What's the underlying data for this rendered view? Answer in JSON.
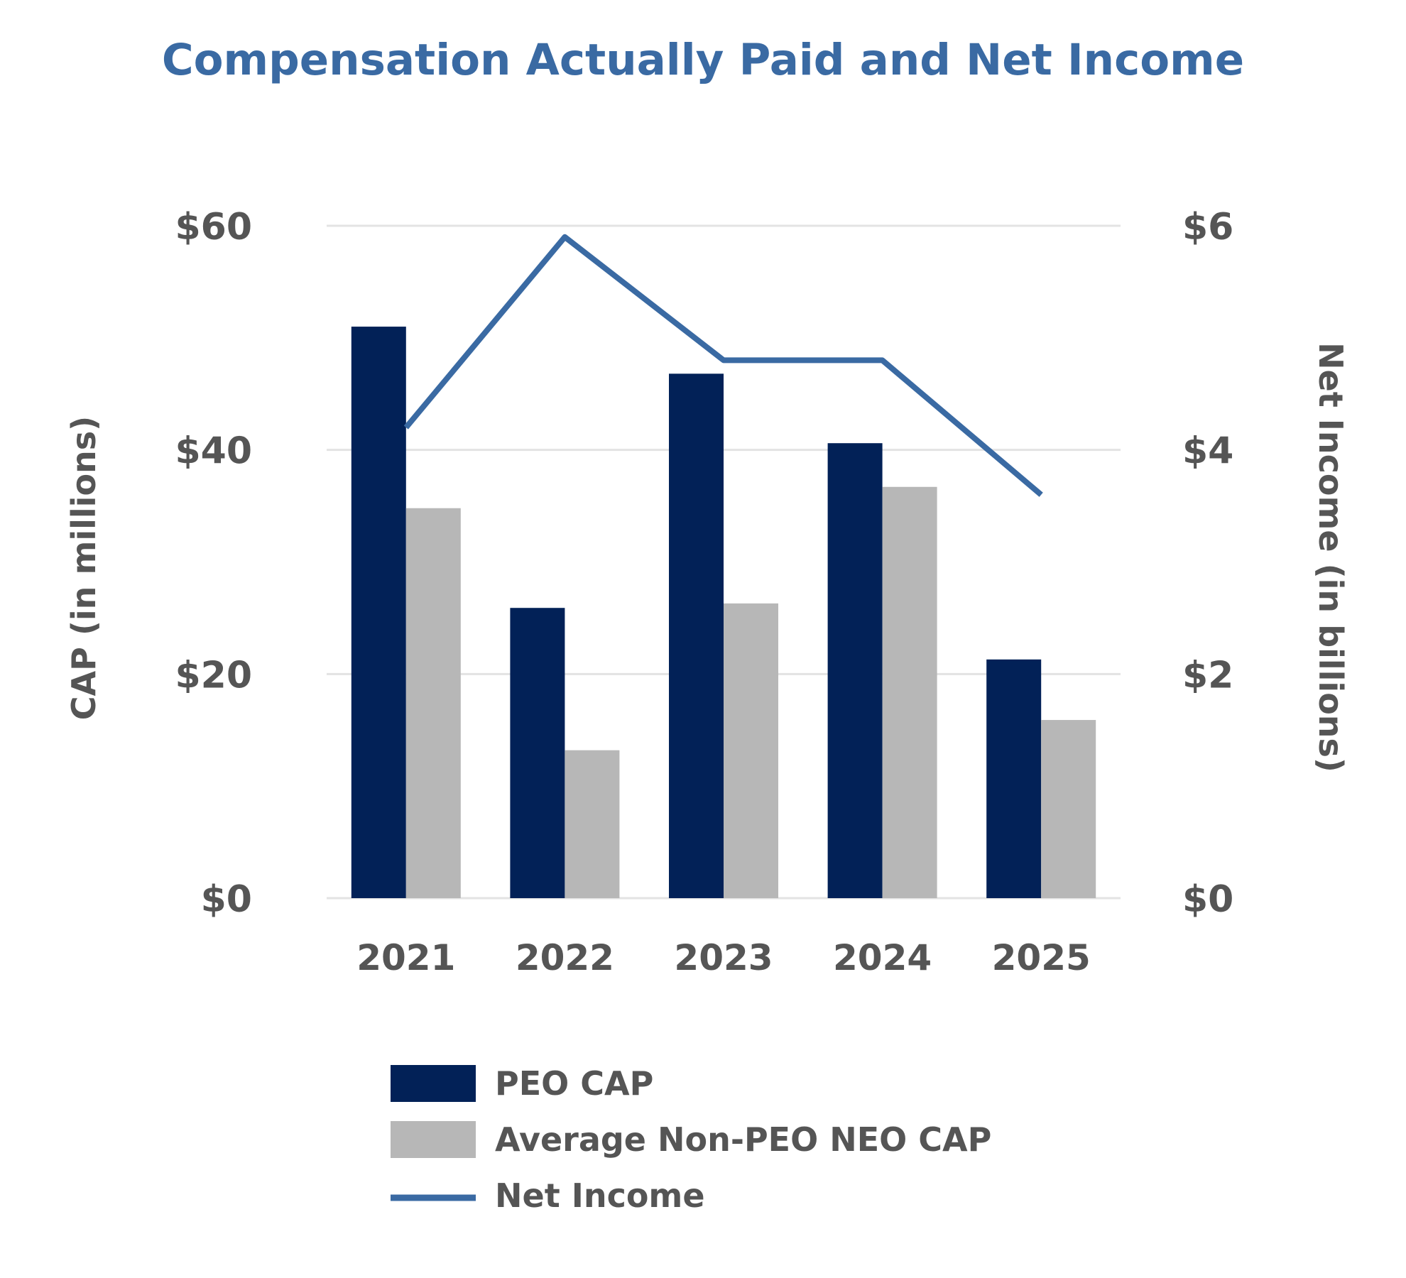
{
  "chart_data": {
    "type": "bar+line",
    "title": "Compensation Actually Paid and Net Income",
    "categories": [
      "2021",
      "2022",
      "2023",
      "2024",
      "2025"
    ],
    "ylabel": "CAP (in millions)",
    "y2label": "Net Income (in billions)",
    "ylim": [
      0,
      60
    ],
    "y2lim": [
      0,
      6
    ],
    "yticks": [
      "$0",
      "$20",
      "$40",
      "$60"
    ],
    "y2ticks": [
      "$0",
      "$2",
      "$4",
      "$6"
    ],
    "ytick_values": [
      0,
      20,
      40,
      60
    ],
    "y2tick_values": [
      0,
      2,
      4,
      6
    ],
    "grid": true,
    "legend_position": "bottom",
    "series": [
      {
        "name": "PEO CAP",
        "kind": "bar",
        "axis": "left",
        "color": "#022157",
        "values": [
          51.0,
          25.9,
          46.8,
          40.6,
          21.3
        ]
      },
      {
        "name": "Average Non-PEO NEO CAP",
        "kind": "bar",
        "axis": "left",
        "color": "#b7b7b7",
        "values": [
          34.8,
          13.2,
          26.3,
          36.7,
          15.9
        ]
      },
      {
        "name": "Net Income",
        "kind": "line",
        "axis": "right",
        "color": "#3a6aa3",
        "values": [
          4.2,
          5.9,
          4.8,
          4.8,
          3.6
        ]
      }
    ]
  }
}
